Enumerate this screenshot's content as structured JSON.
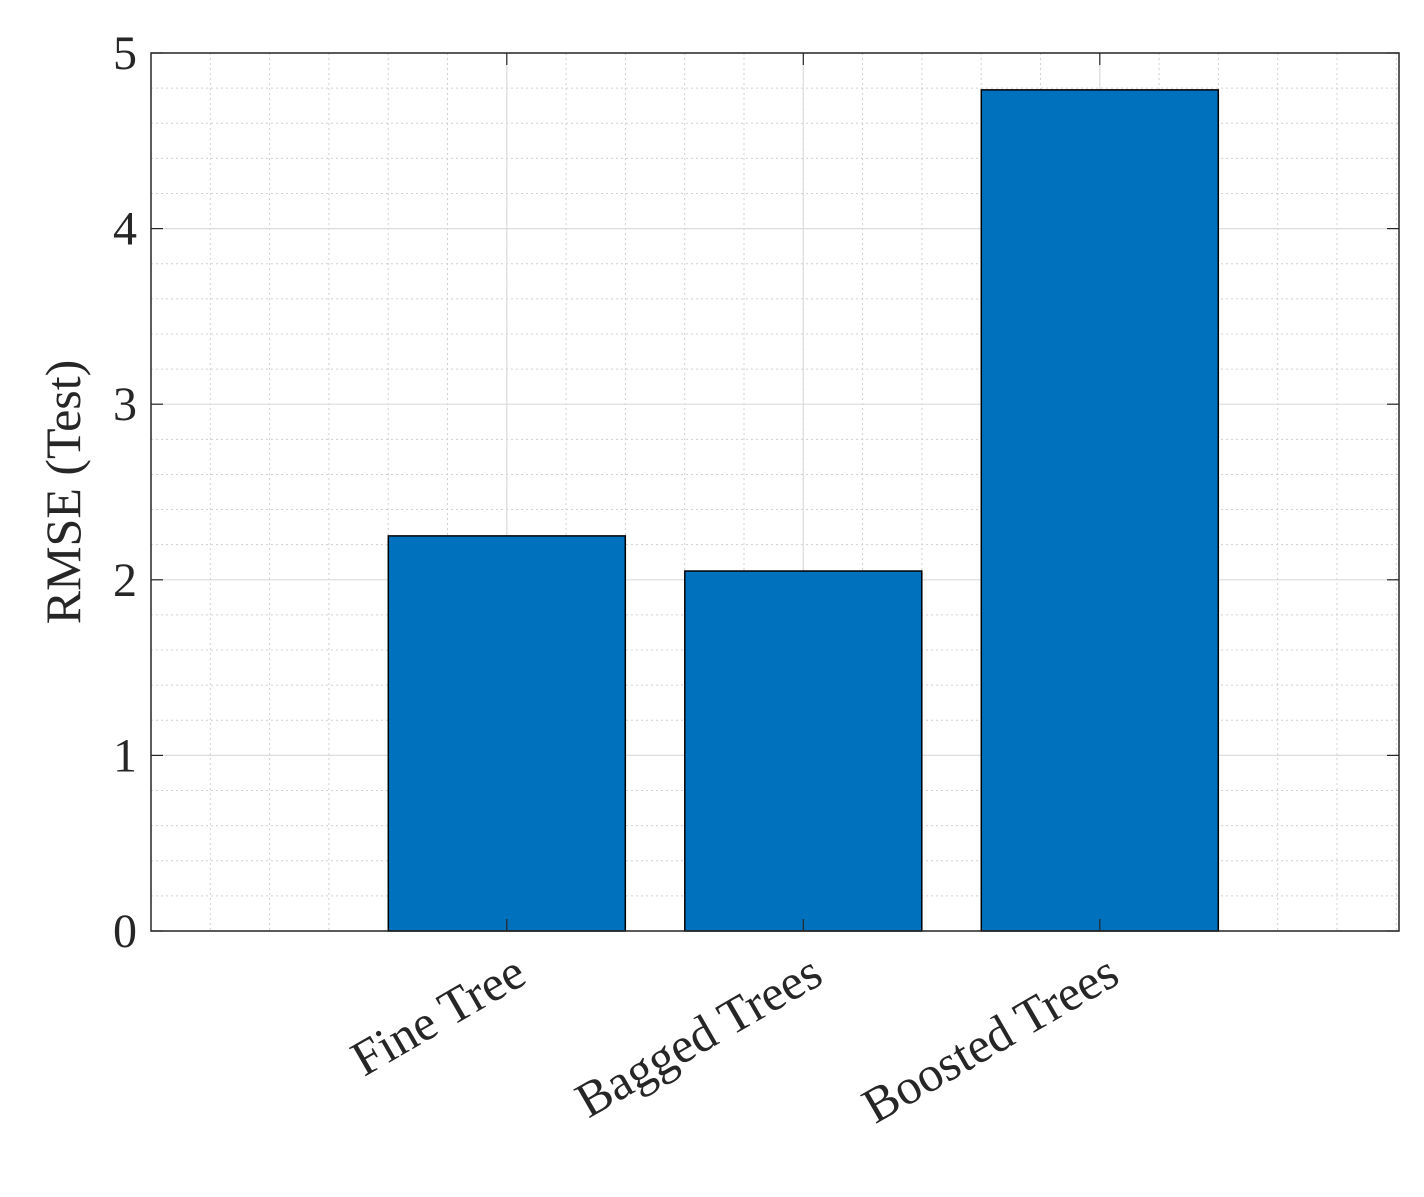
{
  "chart_data": {
    "type": "bar",
    "y_label": "RMSE (Test)",
    "categories": [
      "Fine Tree",
      "Bagged Trees",
      "Boosted Trees"
    ],
    "values": [
      2.25,
      2.05,
      4.79
    ],
    "color": "#0072BD",
    "ylim": [
      0,
      5
    ],
    "yticks": [
      0,
      1,
      2,
      3,
      4,
      5
    ],
    "grid": true,
    "minor_grid": true
  }
}
